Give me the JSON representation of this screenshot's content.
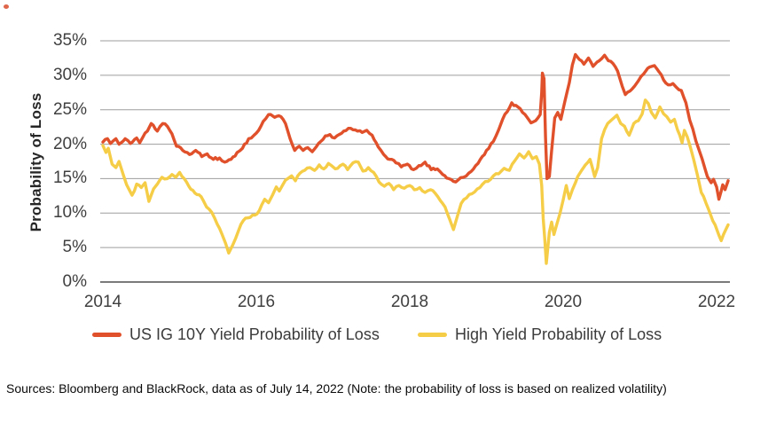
{
  "figure": {
    "corner_mark_color": "#d94a2b",
    "source_note": "Sources: Bloomberg and BlackRock, data as of July 14, 2022 (Note: the probability of loss is based on realized volatility)"
  },
  "chart_data": {
    "type": "line",
    "title": "",
    "ylabel": "Probability of Loss",
    "xlabel": "",
    "x_ticks": [
      2014,
      2016,
      2018,
      2020,
      2022
    ],
    "y_ticks": [
      0,
      5,
      10,
      15,
      20,
      25,
      30,
      35
    ],
    "y_tick_suffix": "%",
    "xlim": [
      2014,
      2022.17
    ],
    "ylim": [
      0,
      35
    ],
    "grid": "horizontal-only",
    "gridline_color": "#9d9d9d",
    "axis_color": "#7a7a7a",
    "tick_label_color": "#3f3f3f",
    "legend_position": "bottom",
    "series": [
      {
        "name": "US IG 10Y Yield Probability of Loss",
        "color": "#e0512b",
        "points": [
          [
            2014.0,
            20.3
          ],
          [
            2014.06,
            20.8
          ],
          [
            2014.1,
            20.1
          ],
          [
            2014.17,
            20.8
          ],
          [
            2014.21,
            20.0
          ],
          [
            2014.29,
            20.8
          ],
          [
            2014.36,
            20.1
          ],
          [
            2014.44,
            20.9
          ],
          [
            2014.48,
            20.2
          ],
          [
            2014.52,
            21.0
          ],
          [
            2014.58,
            21.9
          ],
          [
            2014.63,
            23.0
          ],
          [
            2014.71,
            21.9
          ],
          [
            2014.78,
            23.0
          ],
          [
            2014.84,
            22.6
          ],
          [
            2014.9,
            21.5
          ],
          [
            2014.96,
            19.7
          ],
          [
            2015.04,
            19.1
          ],
          [
            2015.13,
            18.5
          ],
          [
            2015.21,
            19.1
          ],
          [
            2015.29,
            18.2
          ],
          [
            2015.36,
            18.6
          ],
          [
            2015.44,
            17.8
          ],
          [
            2015.52,
            18.0
          ],
          [
            2015.59,
            17.4
          ],
          [
            2015.67,
            17.8
          ],
          [
            2015.75,
            18.8
          ],
          [
            2015.82,
            19.4
          ],
          [
            2015.9,
            20.8
          ],
          [
            2015.97,
            21.3
          ],
          [
            2016.03,
            22.0
          ],
          [
            2016.09,
            23.3
          ],
          [
            2016.16,
            24.3
          ],
          [
            2016.24,
            23.9
          ],
          [
            2016.32,
            24.0
          ],
          [
            2016.38,
            23.0
          ],
          [
            2016.44,
            20.8
          ],
          [
            2016.5,
            19.1
          ],
          [
            2016.56,
            19.7
          ],
          [
            2016.61,
            19.1
          ],
          [
            2016.67,
            19.5
          ],
          [
            2016.73,
            18.9
          ],
          [
            2016.78,
            19.6
          ],
          [
            2016.84,
            20.4
          ],
          [
            2016.9,
            21.2
          ],
          [
            2016.96,
            21.4
          ],
          [
            2017.02,
            20.9
          ],
          [
            2017.08,
            21.4
          ],
          [
            2017.14,
            21.9
          ],
          [
            2017.2,
            22.3
          ],
          [
            2017.26,
            22.1
          ],
          [
            2017.32,
            21.9
          ],
          [
            2017.38,
            21.7
          ],
          [
            2017.44,
            22.0
          ],
          [
            2017.51,
            21.3
          ],
          [
            2017.59,
            19.6
          ],
          [
            2017.66,
            18.5
          ],
          [
            2017.74,
            17.8
          ],
          [
            2017.82,
            17.3
          ],
          [
            2017.89,
            16.7
          ],
          [
            2017.97,
            17.1
          ],
          [
            2018.05,
            16.3
          ],
          [
            2018.12,
            16.9
          ],
          [
            2018.2,
            17.4
          ],
          [
            2018.28,
            16.3
          ],
          [
            2018.36,
            16.4
          ],
          [
            2018.43,
            15.6
          ],
          [
            2018.51,
            15.0
          ],
          [
            2018.57,
            14.6
          ],
          [
            2018.63,
            14.8
          ],
          [
            2018.7,
            15.2
          ],
          [
            2018.77,
            15.8
          ],
          [
            2018.86,
            16.9
          ],
          [
            2018.92,
            17.8
          ],
          [
            2019.0,
            19.1
          ],
          [
            2019.09,
            20.4
          ],
          [
            2019.16,
            22.1
          ],
          [
            2019.21,
            23.6
          ],
          [
            2019.27,
            24.7
          ],
          [
            2019.33,
            26.0
          ],
          [
            2019.41,
            25.4
          ],
          [
            2019.47,
            24.6
          ],
          [
            2019.53,
            23.9
          ],
          [
            2019.58,
            23.1
          ],
          [
            2019.64,
            23.4
          ],
          [
            2019.7,
            24.3
          ],
          [
            2019.72,
            27.5
          ],
          [
            2019.73,
            30.3
          ],
          [
            2019.75,
            29.5
          ],
          [
            2019.77,
            21.0
          ],
          [
            2019.79,
            15.0
          ],
          [
            2019.82,
            15.3
          ],
          [
            2019.85,
            19.1
          ],
          [
            2019.89,
            23.8
          ],
          [
            2019.93,
            24.6
          ],
          [
            2019.97,
            23.6
          ],
          [
            2020.02,
            26.1
          ],
          [
            2020.08,
            28.9
          ],
          [
            2020.12,
            31.5
          ],
          [
            2020.16,
            33.0
          ],
          [
            2020.21,
            32.3
          ],
          [
            2020.27,
            31.6
          ],
          [
            2020.33,
            32.5
          ],
          [
            2020.39,
            31.3
          ],
          [
            2020.44,
            31.9
          ],
          [
            2020.5,
            32.4
          ],
          [
            2020.54,
            32.9
          ],
          [
            2020.59,
            32.1
          ],
          [
            2020.65,
            31.7
          ],
          [
            2020.71,
            30.6
          ],
          [
            2020.77,
            28.4
          ],
          [
            2020.81,
            27.2
          ],
          [
            2020.87,
            27.7
          ],
          [
            2020.93,
            28.4
          ],
          [
            2020.98,
            29.2
          ],
          [
            2021.05,
            30.2
          ],
          [
            2021.13,
            31.2
          ],
          [
            2021.19,
            31.4
          ],
          [
            2021.25,
            30.5
          ],
          [
            2021.31,
            29.3
          ],
          [
            2021.37,
            28.6
          ],
          [
            2021.43,
            28.8
          ],
          [
            2021.48,
            28.2
          ],
          [
            2021.54,
            27.8
          ],
          [
            2021.6,
            26.0
          ],
          [
            2021.65,
            23.5
          ],
          [
            2021.69,
            22.2
          ],
          [
            2021.73,
            20.5
          ],
          [
            2021.77,
            19.2
          ],
          [
            2021.81,
            17.9
          ],
          [
            2021.85,
            16.4
          ],
          [
            2021.88,
            15.3
          ],
          [
            2021.93,
            14.4
          ],
          [
            2021.96,
            14.9
          ],
          [
            2022.0,
            13.8
          ],
          [
            2022.03,
            12.0
          ],
          [
            2022.06,
            13.2
          ],
          [
            2022.08,
            14.1
          ],
          [
            2022.11,
            13.4
          ],
          [
            2022.15,
            14.7
          ]
        ]
      },
      {
        "name": "High Yield Probability of Loss",
        "color": "#f6cd47",
        "points": [
          [
            2014.0,
            19.8
          ],
          [
            2014.04,
            18.8
          ],
          [
            2014.07,
            19.4
          ],
          [
            2014.12,
            17.1
          ],
          [
            2014.17,
            16.6
          ],
          [
            2014.21,
            17.5
          ],
          [
            2014.27,
            15.4
          ],
          [
            2014.31,
            14.1
          ],
          [
            2014.38,
            12.6
          ],
          [
            2014.44,
            14.2
          ],
          [
            2014.5,
            13.7
          ],
          [
            2014.55,
            14.4
          ],
          [
            2014.6,
            11.7
          ],
          [
            2014.66,
            13.5
          ],
          [
            2014.71,
            14.2
          ],
          [
            2014.77,
            15.2
          ],
          [
            2014.84,
            15.0
          ],
          [
            2014.9,
            15.6
          ],
          [
            2014.95,
            15.2
          ],
          [
            2015.0,
            15.9
          ],
          [
            2015.06,
            15.0
          ],
          [
            2015.12,
            13.9
          ],
          [
            2015.2,
            12.9
          ],
          [
            2015.28,
            12.4
          ],
          [
            2015.35,
            10.9
          ],
          [
            2015.42,
            10.1
          ],
          [
            2015.49,
            8.4
          ],
          [
            2015.55,
            7.0
          ],
          [
            2015.6,
            5.6
          ],
          [
            2015.64,
            4.2
          ],
          [
            2015.69,
            5.3
          ],
          [
            2015.73,
            6.3
          ],
          [
            2015.77,
            7.5
          ],
          [
            2015.83,
            8.9
          ],
          [
            2015.89,
            9.3
          ],
          [
            2015.95,
            9.7
          ],
          [
            2016.01,
            9.9
          ],
          [
            2016.07,
            11.2
          ],
          [
            2016.11,
            12.0
          ],
          [
            2016.16,
            11.5
          ],
          [
            2016.21,
            12.6
          ],
          [
            2016.26,
            13.8
          ],
          [
            2016.3,
            13.2
          ],
          [
            2016.35,
            14.2
          ],
          [
            2016.41,
            15.0
          ],
          [
            2016.46,
            15.4
          ],
          [
            2016.51,
            14.7
          ],
          [
            2016.57,
            15.8
          ],
          [
            2016.63,
            16.2
          ],
          [
            2016.7,
            16.6
          ],
          [
            2016.76,
            16.2
          ],
          [
            2016.82,
            17.0
          ],
          [
            2016.88,
            16.4
          ],
          [
            2016.94,
            17.2
          ],
          [
            2017.0,
            16.7
          ],
          [
            2017.06,
            16.5
          ],
          [
            2017.13,
            17.1
          ],
          [
            2017.19,
            16.3
          ],
          [
            2017.26,
            17.3
          ],
          [
            2017.33,
            17.4
          ],
          [
            2017.39,
            16.1
          ],
          [
            2017.46,
            16.6
          ],
          [
            2017.53,
            15.9
          ],
          [
            2017.6,
            14.5
          ],
          [
            2017.67,
            13.9
          ],
          [
            2017.73,
            14.3
          ],
          [
            2017.79,
            13.4
          ],
          [
            2017.86,
            14.0
          ],
          [
            2017.93,
            13.6
          ],
          [
            2018.0,
            14.0
          ],
          [
            2018.06,
            13.4
          ],
          [
            2018.13,
            13.7
          ],
          [
            2018.2,
            13.0
          ],
          [
            2018.27,
            13.4
          ],
          [
            2018.33,
            12.9
          ],
          [
            2018.4,
            11.8
          ],
          [
            2018.46,
            10.9
          ],
          [
            2018.52,
            9.1
          ],
          [
            2018.57,
            7.6
          ],
          [
            2018.62,
            9.5
          ],
          [
            2018.67,
            11.4
          ],
          [
            2018.74,
            12.2
          ],
          [
            2018.81,
            12.8
          ],
          [
            2018.88,
            13.5
          ],
          [
            2018.95,
            14.2
          ],
          [
            2019.02,
            14.6
          ],
          [
            2019.09,
            15.4
          ],
          [
            2019.16,
            15.7
          ],
          [
            2019.23,
            16.5
          ],
          [
            2019.3,
            16.2
          ],
          [
            2019.37,
            17.6
          ],
          [
            2019.43,
            18.6
          ],
          [
            2019.49,
            18.0
          ],
          [
            2019.55,
            18.9
          ],
          [
            2019.6,
            17.9
          ],
          [
            2019.65,
            18.2
          ],
          [
            2019.69,
            17.1
          ],
          [
            2019.72,
            14.0
          ],
          [
            2019.74,
            9.2
          ],
          [
            2019.76,
            6.3
          ],
          [
            2019.78,
            2.7
          ],
          [
            2019.82,
            7.2
          ],
          [
            2019.85,
            8.7
          ],
          [
            2019.88,
            6.9
          ],
          [
            2019.92,
            8.5
          ],
          [
            2019.96,
            10.0
          ],
          [
            2020.0,
            11.9
          ],
          [
            2020.04,
            14.0
          ],
          [
            2020.08,
            12.1
          ],
          [
            2020.12,
            13.4
          ],
          [
            2020.16,
            14.4
          ],
          [
            2020.19,
            15.3
          ],
          [
            2020.24,
            16.2
          ],
          [
            2020.29,
            17.0
          ],
          [
            2020.35,
            17.8
          ],
          [
            2020.41,
            15.3
          ],
          [
            2020.45,
            16.6
          ],
          [
            2020.5,
            20.8
          ],
          [
            2020.54,
            22.1
          ],
          [
            2020.58,
            23.0
          ],
          [
            2020.62,
            23.4
          ],
          [
            2020.66,
            23.8
          ],
          [
            2020.7,
            24.2
          ],
          [
            2020.75,
            23.0
          ],
          [
            2020.8,
            22.6
          ],
          [
            2020.86,
            21.3
          ],
          [
            2020.92,
            23.0
          ],
          [
            2020.98,
            23.4
          ],
          [
            2021.03,
            24.4
          ],
          [
            2021.07,
            26.4
          ],
          [
            2021.11,
            25.9
          ],
          [
            2021.15,
            24.6
          ],
          [
            2021.2,
            23.8
          ],
          [
            2021.26,
            25.4
          ],
          [
            2021.31,
            24.4
          ],
          [
            2021.35,
            24.0
          ],
          [
            2021.4,
            23.2
          ],
          [
            2021.45,
            23.6
          ],
          [
            2021.49,
            22.1
          ],
          [
            2021.52,
            21.3
          ],
          [
            2021.55,
            20.2
          ],
          [
            2021.58,
            22.0
          ],
          [
            2021.62,
            21.0
          ],
          [
            2021.66,
            19.5
          ],
          [
            2021.7,
            17.8
          ],
          [
            2021.75,
            15.5
          ],
          [
            2021.8,
            13.0
          ],
          [
            2021.86,
            11.5
          ],
          [
            2021.92,
            9.8
          ],
          [
            2021.98,
            8.3
          ],
          [
            2022.03,
            6.8
          ],
          [
            2022.06,
            6.0
          ],
          [
            2022.09,
            6.9
          ],
          [
            2022.12,
            7.6
          ],
          [
            2022.15,
            8.3
          ]
        ]
      }
    ]
  }
}
